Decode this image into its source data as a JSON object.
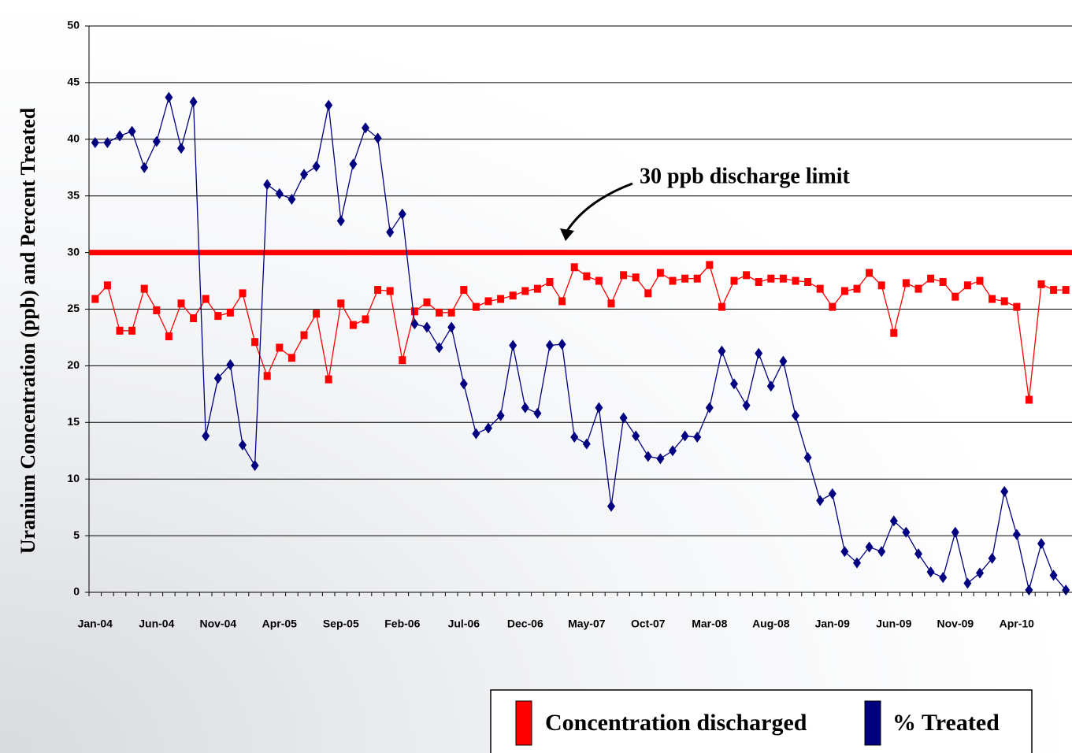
{
  "chart_data": {
    "type": "line",
    "y_label": "Uranium Concentration (ppb) and Percent Treated",
    "annotation": "30 ppb discharge limit",
    "limit": 30,
    "limit_color": "#ff0000",
    "categories": [
      "Jan-04",
      null,
      null,
      null,
      null,
      "Jun-04",
      null,
      null,
      null,
      null,
      "Nov-04",
      null,
      null,
      null,
      null,
      "Apr-05",
      null,
      null,
      null,
      null,
      "Sep-05",
      null,
      null,
      null,
      null,
      "Feb-06",
      null,
      null,
      null,
      null,
      "Jul-06",
      null,
      null,
      null,
      null,
      "Dec-06",
      null,
      null,
      null,
      null,
      "May-07",
      null,
      null,
      null,
      null,
      "Oct-07",
      null,
      null,
      null,
      null,
      "Mar-08",
      null,
      null,
      null,
      null,
      "Aug-08",
      null,
      null,
      null,
      null,
      "Jan-09",
      null,
      null,
      null,
      null,
      "Jun-09",
      null,
      null,
      null,
      null,
      "Nov-09",
      null,
      null,
      null,
      null,
      "Apr-10",
      null,
      null,
      null,
      null
    ],
    "series": [
      {
        "name": "Concentration discharged",
        "color": "#ff0000",
        "marker": "square",
        "values": [
          25.9,
          27.1,
          23.1,
          23.1,
          26.8,
          24.9,
          22.6,
          25.5,
          24.2,
          25.9,
          24.4,
          24.7,
          26.4,
          22.1,
          19.1,
          21.6,
          20.7,
          22.7,
          24.6,
          18.8,
          25.5,
          23.6,
          24.1,
          26.7,
          26.6,
          20.5,
          24.8,
          25.6,
          24.7,
          24.7,
          26.7,
          25.2,
          25.7,
          25.9,
          26.2,
          26.6,
          26.8,
          27.4,
          25.7,
          28.7,
          27.9,
          27.5,
          25.5,
          28.0,
          27.8,
          26.4,
          28.2,
          27.5,
          27.7,
          27.7,
          28.9,
          25.2,
          27.5,
          28.0,
          27.4,
          27.7,
          27.7,
          27.5,
          27.4,
          26.8,
          25.2,
          26.6,
          26.8,
          28.2,
          27.1,
          22.9,
          27.3,
          26.8,
          27.7,
          27.4,
          26.1,
          27.1,
          27.5,
          25.9,
          25.7,
          25.2,
          17.0,
          27.2,
          26.7,
          26.7
        ]
      },
      {
        "name": "% Treated",
        "color": "#000080",
        "marker": "diamond",
        "values": [
          39.7,
          39.7,
          40.3,
          40.7,
          37.5,
          39.8,
          43.7,
          39.2,
          43.3,
          13.8,
          18.9,
          20.1,
          13.0,
          11.2,
          36.0,
          35.2,
          34.7,
          36.9,
          37.6,
          43.0,
          32.8,
          37.8,
          41.0,
          40.1,
          31.8,
          33.4,
          23.7,
          23.4,
          21.6,
          23.4,
          18.4,
          14.0,
          14.5,
          15.6,
          21.8,
          16.3,
          15.8,
          21.8,
          21.9,
          13.7,
          13.1,
          16.3,
          7.6,
          15.4,
          13.8,
          12.0,
          11.8,
          12.5,
          13.8,
          13.7,
          16.3,
          21.3,
          18.4,
          16.5,
          21.1,
          18.2,
          20.4,
          15.6,
          11.9,
          8.1,
          8.7,
          3.6,
          2.6,
          4.0,
          3.6,
          6.3,
          5.3,
          3.4,
          1.8,
          1.3,
          5.3,
          0.8,
          1.7,
          3.0,
          8.9,
          5.1,
          0.2,
          4.3,
          1.5,
          0.2
        ]
      }
    ],
    "ylim": [
      0,
      50
    ],
    "yticks": [
      0,
      5,
      10,
      15,
      20,
      25,
      30,
      35,
      40,
      45,
      50
    ],
    "grid": true
  }
}
